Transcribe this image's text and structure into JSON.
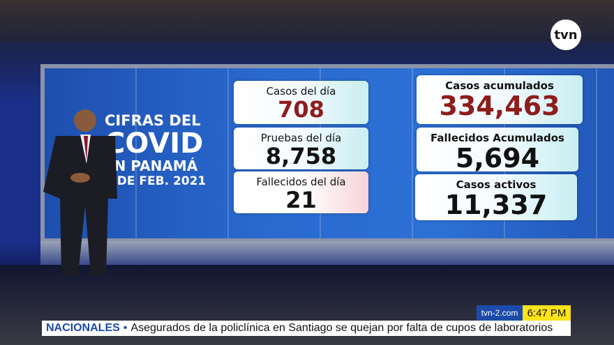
{
  "logo": "tvn",
  "graphic": {
    "title": [
      "CIFRAS DEL",
      "COVID",
      "EN PANAMÁ",
      "5 DE FEB. 2021"
    ],
    "daily": [
      {
        "label": "Casos del día",
        "value": "708"
      },
      {
        "label": "Pruebas del día",
        "value": "8,758"
      },
      {
        "label": "Fallecidos del día",
        "value": "21"
      }
    ],
    "totals": [
      {
        "label": "Casos acumulados",
        "value": "334,463"
      },
      {
        "label": "Fallecidos Acumulados",
        "value": "5,694"
      },
      {
        "label": "Casos activos",
        "value": "11,337"
      }
    ]
  },
  "lower_third": {
    "site": "tvn-2.com",
    "time": "6:47 PM",
    "section": "NACIONALES",
    "headline": "Asegurados de la policlínica en Santiago se quejan por falta de cupos de laboratorios"
  },
  "colors": {
    "accent": "#1b4aa8",
    "time_bg": "#ffe21a",
    "highlight_value": "#8e1d1d"
  }
}
